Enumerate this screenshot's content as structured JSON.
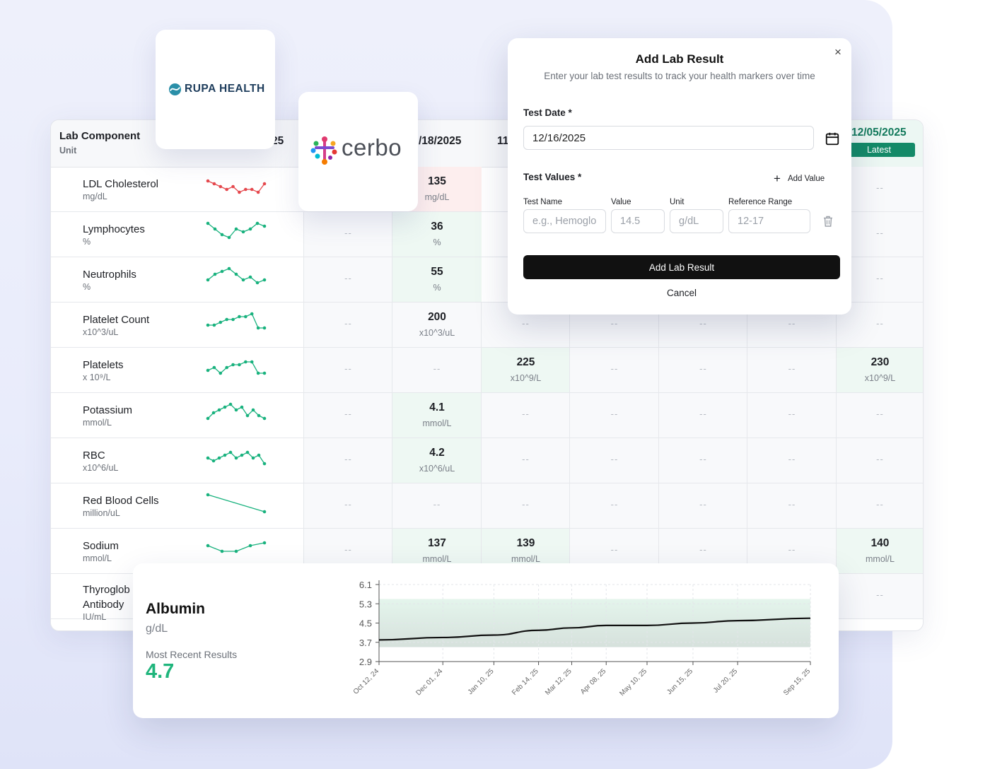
{
  "table": {
    "header": {
      "component_label": "Lab Component",
      "unit_label": "Unit",
      "dates": [
        "25",
        "/18/2025",
        "11,"
      ],
      "latest_date": "12/05/2025",
      "latest_badge": "Latest"
    },
    "rows": [
      {
        "name": "LDL Cholesterol",
        "unit": "mg/dL",
        "spark_color": "#e5484d",
        "spark": [
          6,
          5,
          4,
          3,
          4,
          2,
          3,
          3,
          2,
          5
        ]
      },
      {
        "name": "Lymphocytes",
        "unit": "%",
        "spark_color": "#19b27e",
        "spark": [
          7,
          5,
          3,
          2,
          5,
          4,
          5,
          7,
          6
        ]
      },
      {
        "name": "Neutrophils",
        "unit": "%",
        "spark_color": "#19b27e",
        "spark": [
          3,
          5,
          6,
          7,
          5,
          3,
          4,
          2,
          3
        ]
      },
      {
        "name": "Platelet Count",
        "unit": "x10^3/uL",
        "spark_color": "#19b27e",
        "spark": [
          3,
          3,
          4,
          5,
          5,
          6,
          6,
          7,
          2,
          2
        ]
      },
      {
        "name": "Platelets",
        "unit": "x 10⁹/L",
        "spark_color": "#19b27e",
        "spark": [
          3,
          4,
          2,
          4,
          5,
          5,
          6,
          6,
          2,
          2
        ]
      },
      {
        "name": "Potassium",
        "unit": "mmol/L",
        "spark_color": "#19b27e",
        "spark": [
          2,
          4,
          5,
          6,
          7,
          5,
          6,
          3,
          5,
          3,
          2
        ]
      },
      {
        "name": "RBC",
        "unit": "x10^6/uL",
        "spark_color": "#19b27e",
        "spark": [
          4,
          3,
          4,
          5,
          6,
          4,
          5,
          6,
          4,
          5,
          2
        ]
      },
      {
        "name": "Red Blood Cells",
        "unit": "million/uL",
        "spark_color": "#19b27e",
        "spark": [
          7,
          1
        ]
      },
      {
        "name": "Sodium",
        "unit": "mmol/L",
        "spark_color": "#19b27e",
        "spark": [
          5,
          3,
          3,
          5,
          6
        ]
      },
      {
        "name": "Thyroglob Antibody",
        "unit": "IU/mL",
        "spark_color": "#19b27e",
        "spark": []
      }
    ],
    "cells": [
      [
        {
          "v": "135",
          "u": "mg/dL",
          "s": "red"
        },
        null,
        null,
        null,
        null,
        {
          "d": "--"
        }
      ],
      [
        {
          "d": "--"
        },
        {
          "v": "36",
          "u": "%",
          "s": "green"
        },
        null,
        null,
        null,
        null,
        {
          "d": "--"
        }
      ],
      [
        {
          "d": "--"
        },
        {
          "v": "55",
          "u": "%",
          "s": "green"
        },
        null,
        null,
        null,
        null,
        {
          "d": "--"
        }
      ],
      [
        {
          "d": "--"
        },
        {
          "v": "200",
          "u": "x10^3/uL"
        },
        {
          "d": "--"
        },
        {
          "d": "--"
        },
        {
          "d": "--"
        },
        {
          "d": "--"
        },
        {
          "d": "--"
        }
      ],
      [
        {
          "d": "--"
        },
        {
          "d": "--"
        },
        {
          "v": "225",
          "u": "x10^9/L",
          "s": "green"
        },
        {
          "d": "--"
        },
        {
          "d": "--"
        },
        {
          "d": "--"
        },
        {
          "v": "230",
          "u": "x10^9/L",
          "s": "green"
        }
      ],
      [
        {
          "d": "--"
        },
        {
          "v": "4.1",
          "u": "mmol/L",
          "s": "green"
        },
        {
          "d": "--"
        },
        {
          "d": "--"
        },
        {
          "d": "--"
        },
        {
          "d": "--"
        },
        {
          "d": "--"
        }
      ],
      [
        {
          "d": "--"
        },
        {
          "v": "4.2",
          "u": "x10^6/uL",
          "s": "green"
        },
        {
          "d": "--"
        },
        {
          "d": "--"
        },
        {
          "d": "--"
        },
        {
          "d": "--"
        },
        {
          "d": "--"
        }
      ],
      [
        {
          "d": "--"
        },
        {
          "d": "--"
        },
        {
          "d": "--"
        },
        {
          "d": "--"
        },
        {
          "d": "--"
        },
        {
          "d": "--"
        },
        {
          "d": "--"
        }
      ],
      [
        {
          "d": "--"
        },
        {
          "v": "137",
          "u": "mmol/L",
          "s": "green"
        },
        {
          "v": "139",
          "u": "mmol/L",
          "s": "green"
        },
        {
          "d": "--"
        },
        {
          "d": "--"
        },
        {
          "d": "--"
        },
        {
          "v": "140",
          "u": "mmol/L",
          "s": "green"
        }
      ],
      [
        null,
        null,
        null,
        null,
        null,
        null,
        {
          "d": "--"
        }
      ]
    ]
  },
  "logos": {
    "rupa": "RUPA HEALTH",
    "cerbo": "cerbo"
  },
  "modal": {
    "title": "Add Lab Result",
    "subtitle": "Enter your lab test results to track your health markers over time",
    "close": "×",
    "test_date_label": "Test Date *",
    "test_date_value": "12/16/2025",
    "test_values_label": "Test Values *",
    "add_value": "Add Value",
    "fields": {
      "test_name_label": "Test Name",
      "test_name_placeholder": "e.g., Hemoglobin",
      "value_label": "Value",
      "value_placeholder": "14.5",
      "unit_label": "Unit",
      "unit_placeholder": "g/dL",
      "range_label": "Reference Range",
      "range_placeholder": "12-17"
    },
    "submit": "Add Lab Result",
    "cancel": "Cancel"
  },
  "albumin": {
    "title": "Albumin",
    "unit": "g/dL",
    "recent_label": "Most Recent Results",
    "recent_value": "4.7",
    "accent": "#1fb57c"
  },
  "chart_data": {
    "type": "area",
    "yticks": [
      "6.1",
      "5.3",
      "4.5",
      "3.7",
      "2.9"
    ],
    "ylim": [
      2.9,
      6.1
    ],
    "reference_range": [
      3.5,
      5.5
    ],
    "x": [
      "Oct 12, 24",
      "Dec 01, 24",
      "Jan 10, 25",
      "Feb 14, 25",
      "Mar 12, 25",
      "Apr 08, 25",
      "May 10, 25",
      "Jun 15, 25",
      "Jul 20, 25",
      "Sep 15, 25"
    ],
    "x_days": [
      0,
      50,
      90,
      125,
      151,
      178,
      210,
      246,
      281,
      338
    ],
    "values": [
      3.8,
      3.9,
      4.0,
      4.2,
      4.3,
      4.4,
      4.4,
      4.5,
      4.6,
      4.7
    ],
    "grid": true
  }
}
